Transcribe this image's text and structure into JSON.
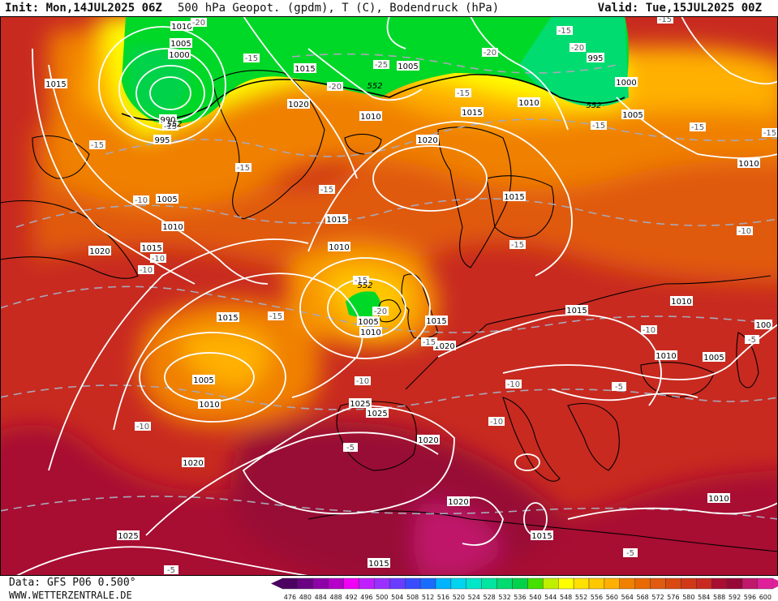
{
  "header": {
    "init": "Init: Mon,14JUL2025 06Z",
    "title": "500 hPa Geopot. (gpdm), T (C), Bodendruck (hPa)",
    "valid": "Valid: Tue,15JUL2025 00Z"
  },
  "footer": {
    "data_source": "Data: GFS P06 0.500°",
    "website": "WWW.WETTERZENTRALE.DE"
  },
  "colors": {
    "scale": [
      "#4b0062",
      "#6a0082",
      "#8e00a8",
      "#b400c8",
      "#d800e6",
      "#f000f5",
      "#c020ff",
      "#9a30ff",
      "#6a3cff",
      "#3a4cff",
      "#1a6cff",
      "#0090ff",
      "#00b4ff",
      "#00d4f0",
      "#00e6c8",
      "#00e6a0",
      "#00dc70",
      "#00d24a",
      "#00d828",
      "#44e000",
      "#c0f000",
      "#ffff00",
      "#ffe000",
      "#ffc800",
      "#ffb000",
      "#f89800",
      "#f08000",
      "#e86a00",
      "#e05a10",
      "#d84a10",
      "#d03818",
      "#c82a20",
      "#b81a28",
      "#a80e30",
      "#980836",
      "#c0186a",
      "#e0209a"
    ],
    "contour": "#ffffff",
    "temperature_contour": "#a8a8b8",
    "coastline": "#000000"
  },
  "colorbar": {
    "labels": [
      "476",
      "480",
      "484",
      "488",
      "492",
      "496",
      "500",
      "504",
      "508",
      "512",
      "516",
      "520",
      "524",
      "528",
      "532",
      "536",
      "540",
      "544",
      "548",
      "552",
      "556",
      "560",
      "564",
      "568",
      "572",
      "576",
      "580",
      "584",
      "588",
      "592",
      "596",
      "600"
    ]
  },
  "map": {
    "region": "North Atlantic and Europe",
    "pressure_labels": [
      {
        "text": "1010"
      },
      {
        "text": "1005"
      },
      {
        "text": "1000"
      },
      {
        "text": "990"
      },
      {
        "text": "995"
      },
      {
        "text": "1015"
      },
      {
        "text": "1015"
      },
      {
        "text": "1020"
      },
      {
        "text": "1010"
      },
      {
        "text": "1005"
      },
      {
        "text": "1005"
      },
      {
        "text": "1010"
      },
      {
        "text": "1015"
      },
      {
        "text": "1020"
      },
      {
        "text": "995"
      },
      {
        "text": "1000"
      },
      {
        "text": "1010"
      },
      {
        "text": "1005"
      },
      {
        "text": "1015"
      },
      {
        "text": "1020"
      },
      {
        "text": "1015"
      },
      {
        "text": "1010"
      },
      {
        "text": "1005"
      },
      {
        "text": "1010"
      },
      {
        "text": "1015"
      },
      {
        "text": "1020"
      },
      {
        "text": "1015"
      },
      {
        "text": "1005"
      },
      {
        "text": "1010"
      },
      {
        "text": "1015"
      },
      {
        "text": "1020"
      },
      {
        "text": "1025"
      },
      {
        "text": "1025"
      },
      {
        "text": "1020"
      },
      {
        "text": "1020"
      },
      {
        "text": "1015"
      },
      {
        "text": "1010"
      },
      {
        "text": "1010"
      },
      {
        "text": "1005"
      },
      {
        "text": "1010"
      },
      {
        "text": "1015"
      },
      {
        "text": "1025"
      },
      {
        "text": "1010"
      },
      {
        "text": "100"
      },
      {
        "text": "1015"
      }
    ],
    "temperature_labels": [
      {
        "text": "-20"
      },
      {
        "text": "-15"
      },
      {
        "text": "-25"
      },
      {
        "text": "-20"
      },
      {
        "text": "-15"
      },
      {
        "text": "-15"
      },
      {
        "text": "-10"
      },
      {
        "text": "-15"
      },
      {
        "text": "-15"
      },
      {
        "text": "-10"
      },
      {
        "text": "-15"
      },
      {
        "text": "-15"
      },
      {
        "text": "-20"
      },
      {
        "text": "-20"
      },
      {
        "text": "-15"
      },
      {
        "text": "-15"
      },
      {
        "text": "-15"
      },
      {
        "text": "-15"
      },
      {
        "text": "-10"
      },
      {
        "text": "-10"
      },
      {
        "text": "-10"
      },
      {
        "text": "-10"
      },
      {
        "text": "-10"
      },
      {
        "text": "-10"
      },
      {
        "text": "-5"
      },
      {
        "text": "-5"
      },
      {
        "text": "-5"
      },
      {
        "text": "-5"
      },
      {
        "text": "-5"
      },
      {
        "text": "-20"
      },
      {
        "text": "-15"
      },
      {
        "text": "-15"
      },
      {
        "text": "-15"
      },
      {
        "text": "-10"
      },
      {
        "text": "-15"
      }
    ],
    "geopotential_labels": [
      {
        "text": "552"
      },
      {
        "text": "552"
      },
      {
        "text": "552"
      },
      {
        "text": "552"
      }
    ]
  }
}
